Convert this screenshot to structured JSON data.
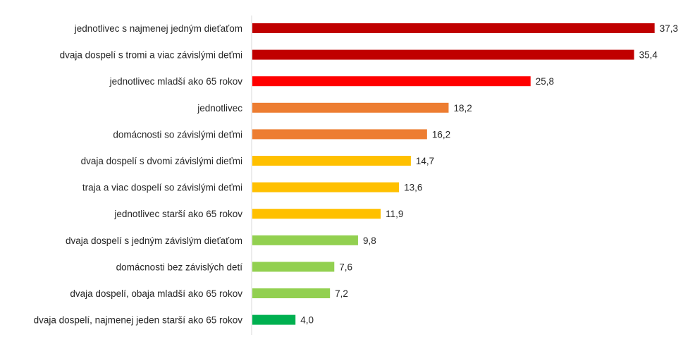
{
  "chart_data": {
    "type": "bar",
    "orientation": "horizontal",
    "categories": [
      "jednotlivec s najmenej jedným dieťaťom",
      "dvaja dospelí s tromi a viac závislými deťmi",
      "jednotlivec mladší ako 65 rokov",
      "jednotlivec",
      "domácnosti so závislými deťmi",
      "dvaja dospelí s dvomi závislými dieťmi",
      "traja a viac dospelí so závislými deťmi",
      "jednotlivec starší ako 65 rokov",
      "dvaja dospelí s jedným závislým dieťaťom",
      "domácnosti  bez závislých detí",
      "dvaja dospelí, obaja mladší ako 65 rokov",
      "dvaja dospelí, najmenej jeden starší ako 65 rokov"
    ],
    "values": [
      37.3,
      35.4,
      25.8,
      18.2,
      16.2,
      14.7,
      13.6,
      11.9,
      9.8,
      7.6,
      7.2,
      4.0
    ],
    "value_labels": [
      "37,3",
      "35,4",
      "25,8",
      "18,2",
      "16,2",
      "14,7",
      "13,6",
      "11,9",
      "9,8",
      "7,6",
      "7,2",
      "4,0"
    ],
    "colors": [
      "#c00000",
      "#c00000",
      "#ff0000",
      "#ed7d31",
      "#ed7d31",
      "#ffc000",
      "#ffc000",
      "#ffc000",
      "#92d050",
      "#92d050",
      "#92d050",
      "#00b050"
    ],
    "xlim": [
      0,
      40
    ],
    "grid": false,
    "legend": "none"
  }
}
